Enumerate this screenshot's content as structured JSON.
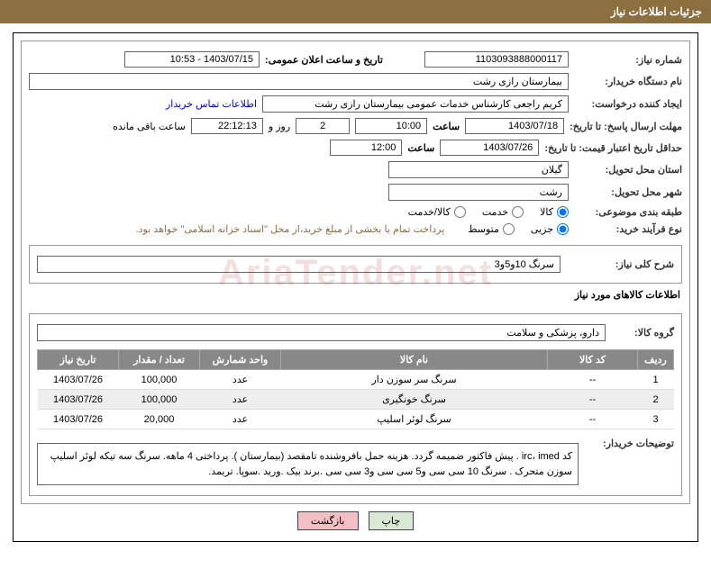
{
  "header": {
    "title": "جزئیات اطلاعات نیاز"
  },
  "fields": {
    "need_no_label": "شماره نیاز:",
    "need_no": "1103093888000117",
    "announce_label": "تاریخ و ساعت اعلان عمومی:",
    "announce_value": "1403/07/15 - 10:53",
    "buyer_org_label": "نام دستگاه خریدار:",
    "buyer_org": "بیمارستان رازی رشت",
    "requester_label": "ایجاد کننده درخواست:",
    "requester": "کریم راجعی کارشناس خدمات عمومی بیمارستان رازی رشت",
    "contact_link": "اطلاعات تماس خریدار",
    "deadline_label": "مهلت ارسال پاسخ: تا تاریخ:",
    "deadline_date": "1403/07/18",
    "time_label": "ساعت",
    "deadline_time": "10:00",
    "days_remaining": "2",
    "days_word": "روز و",
    "hours_remaining": "22:12:13",
    "remaining_suffix": "ساعت باقی مانده",
    "validity_label": "حداقل تاریخ اعتبار قیمت: تا تاریخ:",
    "validity_date": "1403/07/26",
    "validity_time": "12:00",
    "province_label": "استان محل تحویل:",
    "province": "گیلان",
    "city_label": "شهر محل تحویل:",
    "city": "رشت",
    "category_label": "طبقه بندی موضوعی:",
    "cat_goods": "کالا",
    "cat_service": "خدمت",
    "cat_both": "کالا/خدمت",
    "process_label": "نوع فرآیند خرید:",
    "proc_minor": "جزیی",
    "proc_medium": "متوسط",
    "process_note": "پرداخت تمام یا بخشی از مبلغ خرید،از محل \"اسناد خزانه اسلامی\" خواهد بود.",
    "need_title_label": "شرح کلی نیاز:",
    "need_title": "سرنگ 10و5و3",
    "items_section": "اطلاعات کالاهای مورد نیاز",
    "group_label": "گروه کالا:",
    "group_value": "دارو، پزشکی و سلامت",
    "buyer_desc_label": "توضیحات خریدار:",
    "buyer_desc": "کد irc، imed . پیش فاکتور ضمیمه گردد. هزینه حمل بافروشنده تامقصد (بیمارستان ). پرداختی 4 ماهه.  سرنگ سه تیکه لوئر اسلیپ سوزن متحرک . سرنگ 10 سی سی و5 سی سی و3 سی سی .برند بیک .ورید .سوپا. تریمد."
  },
  "table": {
    "headers": {
      "row": "ردیف",
      "code": "کد کالا",
      "name": "نام کالا",
      "unit": "واحد شمارش",
      "qty": "تعداد / مقدار",
      "date": "تاریخ نیاز"
    },
    "rows": [
      {
        "idx": "1",
        "code": "--",
        "name": "سرنگ سر سوزن دار",
        "unit": "عدد",
        "qty": "100,000",
        "date": "1403/07/26"
      },
      {
        "idx": "2",
        "code": "--",
        "name": "سرنگ خونگیری",
        "unit": "عدد",
        "qty": "100,000",
        "date": "1403/07/26"
      },
      {
        "idx": "3",
        "code": "--",
        "name": "سرنگ لوئر اسلیپ",
        "unit": "عدد",
        "qty": "20,000",
        "date": "1403/07/26"
      }
    ]
  },
  "buttons": {
    "print": "چاپ",
    "back": "بازگشت"
  },
  "watermark": "AriaTender.net",
  "colors": {
    "header_bg": "#8b6f3e",
    "th_bg": "#888888",
    "btn_print_bg": "#d9e8d4",
    "btn_back_bg": "#f4bfc4"
  }
}
